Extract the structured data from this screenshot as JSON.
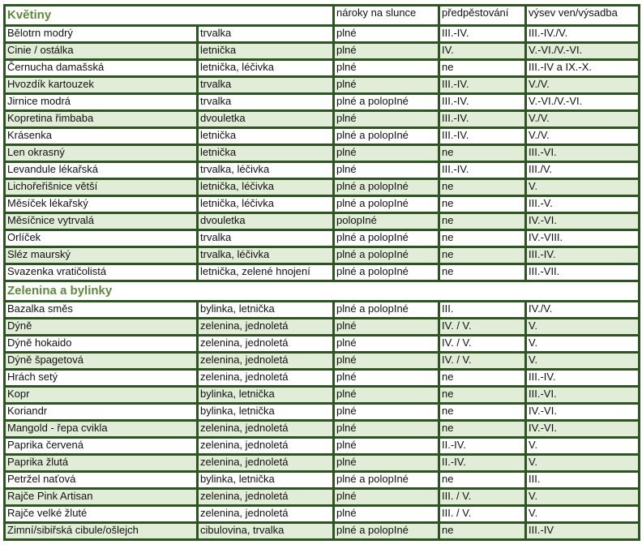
{
  "columns": [
    "nároky na slunce",
    "předpěstování",
    "výsev ven/výsadba"
  ],
  "colors": {
    "border": "#2f5424",
    "section_title": "#5d8a3c",
    "alt_row": "#e2edd8"
  },
  "sections": [
    {
      "title": "Květiny",
      "rows": [
        [
          "Bělotrn modrý",
          "trvalka",
          "plné",
          "III.-IV.",
          "III.-IV./V."
        ],
        [
          "Cinie / ostálka",
          "letnička",
          "plné",
          "IV.",
          "V.-VI./V.-VI."
        ],
        [
          "Černucha damašská",
          "letnička, léčivka",
          "plné",
          "ne",
          "III.-IV a IX.-X."
        ],
        [
          "Hvozdík kartouzek",
          "trvalka",
          "plné",
          "III.-IV.",
          "V./V."
        ],
        [
          "Jirnice modrá",
          "trvalka",
          "plné a polopIné",
          "III.-IV.",
          "V.-VI./V.-VI."
        ],
        [
          "Kopretina řimbaba",
          "dvouletka",
          "plné",
          "III.-IV.",
          "V./V."
        ],
        [
          "Krásenka",
          "letnička",
          "plné a polopIné",
          "III.-IV.",
          "V./V."
        ],
        [
          "Len okrasný",
          "letnička",
          "plné",
          "ne",
          "III.-VI."
        ],
        [
          "Levandule lékařská",
          "trvalka, léčivka",
          "plné",
          "III.-IV.",
          "III./V."
        ],
        [
          "Lichořeřišnice větší",
          "letnička, léčivka",
          "plné a polopIné",
          "ne",
          "V."
        ],
        [
          "Měsíček lékařský",
          "letnička, léčivka",
          "plné a polopIné",
          "ne",
          "III.-V."
        ],
        [
          "Měsíčnice vytrvalá",
          "dvouletka",
          "polopIné",
          "ne",
          "IV.-VI."
        ],
        [
          "Orlíček",
          "trvalka",
          "plné a polopIné",
          "ne",
          "IV.-VIII."
        ],
        [
          "Sléz maurský",
          "trvalka, léčivka",
          "plné a polopIné",
          "ne",
          "III.-IV."
        ],
        [
          "Svazenka vratičolistá",
          "letnička, zelené hnojení",
          "plné a polopIné",
          "ne",
          "III.-VII."
        ]
      ]
    },
    {
      "title": "Zelenina a bylinky",
      "rows": [
        [
          "Bazalka směs",
          "bylinka, letnička",
          "plné a polopIné",
          "III.",
          "IV./V."
        ],
        [
          "Dýně",
          "zelenina, jednoletá",
          "plné",
          "IV. / V.",
          "V."
        ],
        [
          "Dýně hokaido",
          "zelenina, jednoletá",
          "plné",
          "IV. / V.",
          "V."
        ],
        [
          "Dýně špagetová",
          "zelenina, jednoletá",
          "plné",
          "IV. / V.",
          "V."
        ],
        [
          "Hrách setý",
          "zelenina, jednoletá",
          "plné",
          "ne",
          "III.-IV."
        ],
        [
          "Kopr",
          "bylinka, letnička",
          "plné",
          "ne",
          "III.-VI."
        ],
        [
          "Koriandr",
          "bylinka, letnička",
          "plné",
          "ne",
          "IV.-VI."
        ],
        [
          "Mangold - řepa cvikla",
          "zelenina, jednoletá",
          "plné",
          "ne",
          "IV.-VI."
        ],
        [
          "Paprika červená",
          "zelenina, jednoletá",
          "plné",
          "II.-IV.",
          "V."
        ],
        [
          "Paprika žlutá",
          "zelenina, jednoletá",
          "plné",
          "II.-IV.",
          "V."
        ],
        [
          "Petržel naťová",
          "bylinka, letnička",
          "plné a polopIné",
          "ne",
          "III."
        ],
        [
          "Rajče Pink Artisan",
          "zelenina, jednoletá",
          "plné",
          "III. / V.",
          "V."
        ],
        [
          "Rajče velké žluté",
          "zelenina, jednoletá",
          "plné",
          "III. / V.",
          "V."
        ],
        [
          "Zimní/sibiřská cibule/ošlejch",
          "cibulovina, trvalka",
          "plné a polopIné",
          "ne",
          "III.-IV"
        ]
      ]
    }
  ]
}
